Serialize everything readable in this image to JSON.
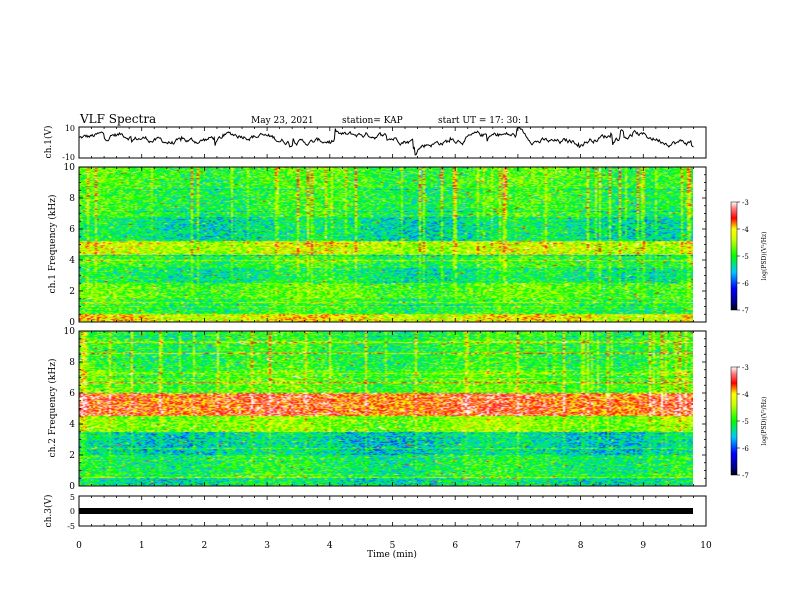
{
  "header": {
    "title": "VLF  Spectra",
    "date": "May 23, 2021",
    "station": "station= KAP",
    "start": "start  UT  =    17: 30: 1"
  },
  "chart_data": [
    {
      "panel": "ch1-waveform",
      "type": "line",
      "ylabel": "ch.1(V)",
      "ylim": [
        -10,
        10
      ],
      "yticks": [
        "10",
        "-10"
      ],
      "xlim": [
        0,
        10
      ],
      "x_end": 9.8,
      "description_values": "noisy waveform, mostly between -3 and 8 V"
    },
    {
      "panel": "ch1-spectrogram",
      "type": "heatmap",
      "ylabel": "ch.1 Frequency (kHz)",
      "ylim": [
        0,
        10
      ],
      "yticks": [
        "0",
        "2",
        "4",
        "6",
        "8",
        "10"
      ],
      "xlim": [
        0,
        10
      ],
      "x_end": 9.8,
      "bands_log_psd": [
        {
          "f": [
            0.0,
            0.5
          ],
          "level": -4.2
        },
        {
          "f": [
            0.5,
            1.5
          ],
          "level": -5.0
        },
        {
          "f": [
            1.5,
            2.5
          ],
          "level": -4.8
        },
        {
          "f": [
            2.5,
            3.5
          ],
          "level": -5.2
        },
        {
          "f": [
            3.5,
            4.3
          ],
          "level": -5.0
        },
        {
          "f": [
            4.3,
            5.2
          ],
          "level": -4.4
        },
        {
          "f": [
            5.2,
            6.8
          ],
          "level": -5.3
        },
        {
          "f": [
            6.8,
            8.5
          ],
          "level": -5.0
        },
        {
          "f": [
            8.5,
            10.0
          ],
          "level": -4.9
        }
      ]
    },
    {
      "panel": "ch2-spectrogram",
      "type": "heatmap",
      "ylabel": "ch.2 Frequency (kHz)",
      "ylim": [
        0,
        10
      ],
      "yticks": [
        "0",
        "2",
        "4",
        "6",
        "8",
        "10"
      ],
      "xlim": [
        0,
        10
      ],
      "x_end": 9.8,
      "bands_log_psd": [
        {
          "f": [
            0.0,
            0.5
          ],
          "level": -5.3
        },
        {
          "f": [
            0.5,
            2.0
          ],
          "level": -5.1
        },
        {
          "f": [
            2.0,
            3.5
          ],
          "level": -5.4
        },
        {
          "f": [
            3.5,
            4.5
          ],
          "level": -4.6
        },
        {
          "f": [
            4.5,
            6.0
          ],
          "level": -3.6
        },
        {
          "f": [
            6.0,
            7.5
          ],
          "level": -4.8
        },
        {
          "f": [
            7.5,
            10.0
          ],
          "level": -5.0
        }
      ]
    },
    {
      "panel": "ch3-waveform",
      "type": "line",
      "ylabel": "ch.3(V)",
      "ylim": [
        -5,
        5
      ],
      "yticks": [
        "5",
        "0",
        "-5"
      ],
      "xlim": [
        0,
        10
      ],
      "x_end": 9.8,
      "xlabel": "Time  (min)",
      "xticks": [
        "0",
        "1",
        "2",
        "3",
        "4",
        "5",
        "6",
        "7",
        "8",
        "9",
        "10"
      ],
      "values_note": "flat thick band around 0 V"
    },
    {
      "panel": "colorbars",
      "type": "heatmap",
      "colorbar_label": "log(PSD)(V²/Hz)",
      "range": [
        -7,
        -3
      ],
      "ticks": [
        "-3",
        "-4",
        "-5",
        "-6",
        "-7"
      ]
    }
  ],
  "colors": {
    "low": "#000080",
    "mid": "#00ff00",
    "high": "#ff0000",
    "top": "#ffffff"
  }
}
